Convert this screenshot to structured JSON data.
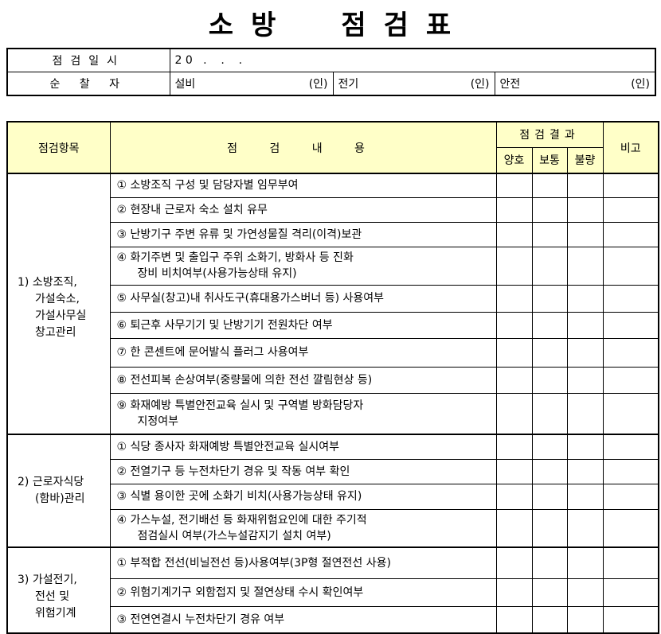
{
  "title": [
    "소",
    "방",
    "점",
    "검",
    "표"
  ],
  "info": {
    "date_label": "점검일시",
    "date_value": "2 0   .    .    .",
    "inspector_label": "순 찰 자",
    "signers": [
      {
        "role": "설비",
        "seal": "(인)"
      },
      {
        "role": "전기",
        "seal": "(인)"
      },
      {
        "role": "안전",
        "seal": "(인)"
      }
    ]
  },
  "header": {
    "category": "점검항목",
    "content": "점 검 내 용",
    "result": "점검결과",
    "good": "양호",
    "normal": "보통",
    "bad": "불량",
    "remarks": "비고"
  },
  "sections": [
    {
      "label": [
        "1) 소방조직,",
        "가설숙소,",
        "가설사무실",
        "창고관리"
      ],
      "items": [
        [
          "① 소방조직 구성 및 담당자별 임무부여"
        ],
        [
          "② 현장내 근로자 숙소 설치 유무"
        ],
        [
          "③ 난방기구 주변 유류 및 가연성물질 격리(이격)보관"
        ],
        [
          "④ 화기주변 및 출입구 주위 소화기, 방화사 등 진화",
          "장비 비치여부(사용가능상태 유지)"
        ],
        [
          "⑤ 사무실(창고)내 취사도구(휴대용가스버너 등) 사용여부"
        ],
        [
          "⑥ 퇴근후 사무기기 및 난방기기 전원차단 여부"
        ],
        [
          "⑦ 한 콘센트에 문어발식 플러그 사용여부"
        ],
        [
          "⑧ 전선피복 손상여부(중량물에 의한 전선 깔림현상 등)"
        ],
        [
          "⑨ 화재예방 특별안전교육 실시 및 구역별 방화담당자",
          "지정여부"
        ]
      ]
    },
    {
      "label": [
        "2) 근로자식당",
        "(함바)관리"
      ],
      "items": [
        [
          "① 식당 종사자 화재예방 특별안전교육 실시여부"
        ],
        [
          "② 전열기구 등 누전차단기 경유 및 작동 여부 확인"
        ],
        [
          "③ 식별 용이한 곳에 소화기 비치(사용가능상태 유지)"
        ],
        [
          "④ 가스누설, 전기배선 등 화재위험요인에 대한 주기적",
          "점검실시 여부(가스누설감지기 설치 여부)"
        ]
      ]
    },
    {
      "label": [
        "3) 가설전기,",
        "전선 및",
        "위험기계"
      ],
      "items": [
        [
          "① 부적합 전선(비닐전선 등)사용여부(3P형 절연전선 사용)"
        ],
        [
          "② 위험기계기구 외함접지 및 절연상태 수시 확인여부"
        ],
        [
          "③ 전연연결시 누전차단기 경유 여부"
        ]
      ]
    }
  ]
}
